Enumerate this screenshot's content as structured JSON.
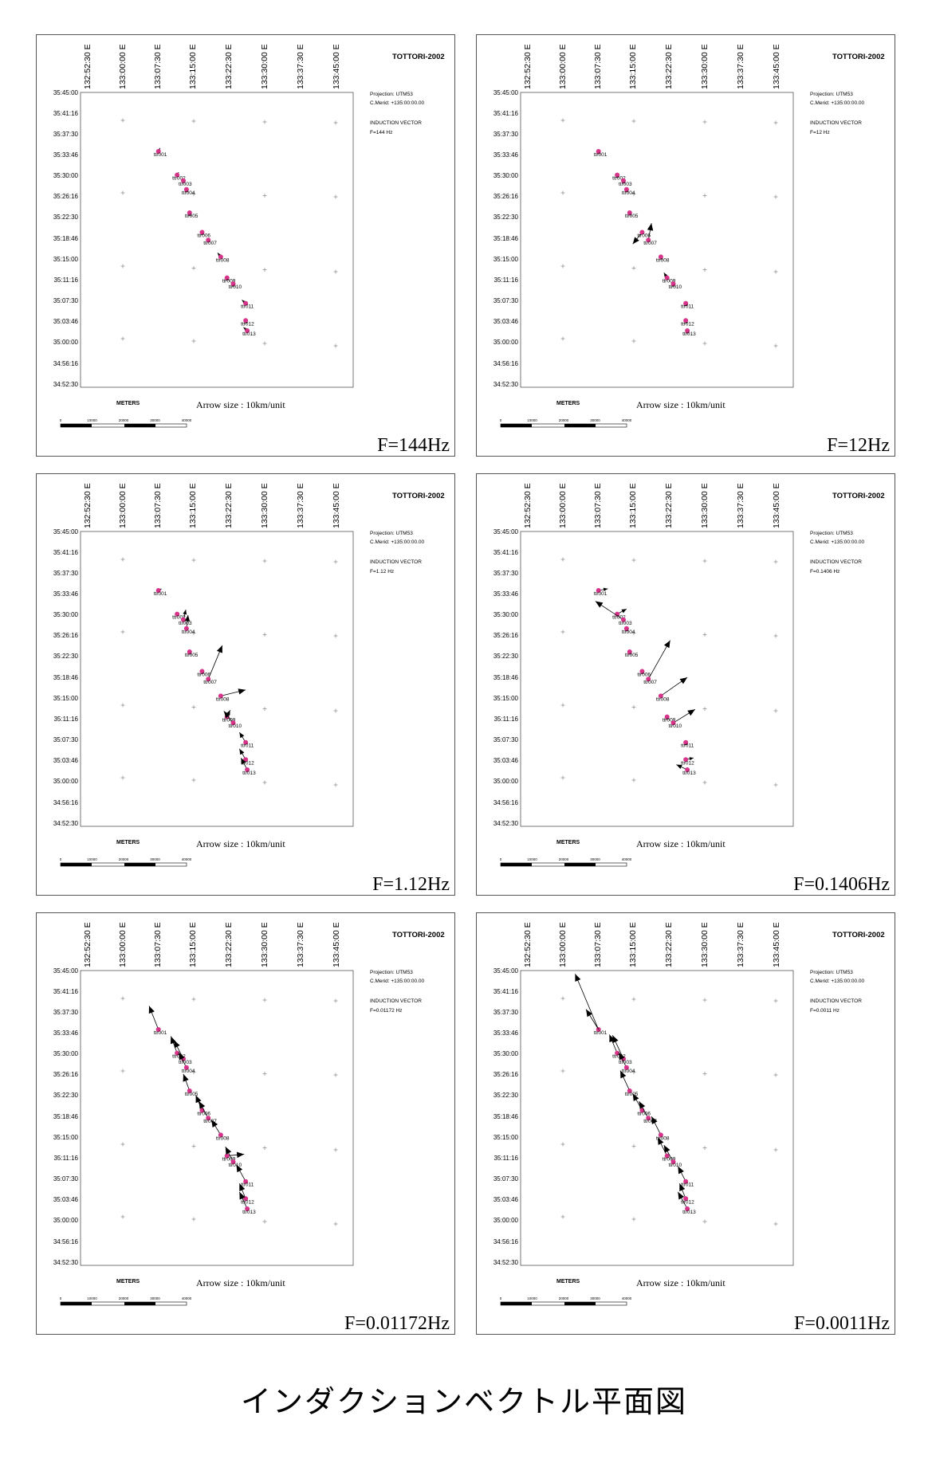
{
  "map_common": {
    "survey_title": "TOTTORI-2002",
    "projection": "Projection: UTM53",
    "central_meridian": "C.Merid: +135:00:00.00",
    "vector_type": "INDUCTION VECTOR",
    "arrow_size_note": "Arrow size : 10km/unit",
    "scale_unit": "METERS",
    "scale_ticks": [
      "0",
      "10000",
      "20000",
      "30000",
      "40000"
    ],
    "longitude_labels": [
      "132:52:30 E",
      "133:00:00 E",
      "133:07:30 E",
      "133:15:00 E",
      "133:22:30 E",
      "133:30:00 E",
      "133:37:30 E",
      "133:45:00 E"
    ],
    "latitude_labels": [
      "35:45:00",
      "35:41:16",
      "35:37:30",
      "35:33:46",
      "35:30:00",
      "35:26:16",
      "35:22:30",
      "35:18:46",
      "35:15:00",
      "35:11:16",
      "35:07:30",
      "35:03:46",
      "35:00:00",
      "34:56:16",
      "34:52:30"
    ]
  },
  "stations": [
    {
      "label": "ttr001",
      "lon": 133.125,
      "lat": 35.575
    },
    {
      "label": "ttr002",
      "lon": 133.185,
      "lat": 35.505
    },
    {
      "label": "ttr003",
      "lon": 133.205,
      "lat": 35.488
    },
    {
      "label": "ttr004",
      "lon": 133.215,
      "lat": 35.462
    },
    {
      "label": "ttr005",
      "lon": 133.225,
      "lat": 35.393
    },
    {
      "label": "ttr006",
      "lon": 133.265,
      "lat": 35.335
    },
    {
      "label": "ttr007",
      "lon": 133.285,
      "lat": 35.312
    },
    {
      "label": "ttr008",
      "lon": 133.325,
      "lat": 35.262
    },
    {
      "label": "ttr009",
      "lon": 133.345,
      "lat": 35.2
    },
    {
      "label": "ttr010",
      "lon": 133.365,
      "lat": 35.182
    },
    {
      "label": "ttr011",
      "lon": 133.405,
      "lat": 35.124
    },
    {
      "label": "ttr012",
      "lon": 133.405,
      "lat": 35.073
    },
    {
      "label": "ttr013",
      "lon": 133.41,
      "lat": 35.043
    }
  ],
  "panels": [
    {
      "frequency_label": "F=144Hz",
      "legend_freq": "F=144 Hz",
      "vectors": [
        [
          0.005,
          0.01
        ],
        [
          0.005,
          0.008
        ],
        [
          0,
          0.005
        ],
        [
          0,
          0.004
        ],
        [
          0,
          0.003
        ],
        [
          0,
          0.004
        ],
        [
          0,
          0.005
        ],
        [
          -0.01,
          0.012
        ],
        [
          0,
          0.004
        ],
        [
          0,
          0.004
        ],
        [
          -0.012,
          0.01
        ],
        [
          0,
          0.004
        ],
        [
          -0.012,
          0.01
        ]
      ]
    },
    {
      "frequency_label": "F=12Hz",
      "legend_freq": "F=12 Hz",
      "vectors": [
        [
          0,
          0.004
        ],
        [
          0,
          0.004
        ],
        [
          0,
          0.004
        ],
        [
          0,
          0.004
        ],
        [
          0,
          0.004
        ],
        [
          -0.03,
          -0.035
        ],
        [
          0.01,
          0.05
        ],
        [
          0,
          0.004
        ],
        [
          -0.01,
          0.015
        ],
        [
          0,
          0.004
        ],
        [
          0,
          0.004
        ],
        [
          0,
          0.004
        ],
        [
          0,
          0.004
        ]
      ]
    },
    {
      "frequency_label": "F=1.12Hz",
      "legend_freq": "F=1.12 Hz",
      "vectors": [
        [
          0.01,
          0.005
        ],
        [
          0,
          0.006
        ],
        [
          0.008,
          0.03
        ],
        [
          0.005,
          0.04
        ],
        [
          0,
          0.004
        ],
        [
          0,
          0.004
        ],
        [
          0.045,
          0.1
        ],
        [
          0.08,
          0.018
        ],
        [
          0.01,
          0.02
        ],
        [
          -0.03,
          0.035
        ],
        [
          -0.02,
          0.03
        ],
        [
          -0.02,
          0.032
        ],
        [
          -0.02,
          0.035
        ]
      ]
    },
    {
      "frequency_label": "F=0.1406Hz",
      "legend_freq": "F=0.1406 Hz",
      "vectors": [
        [
          0.03,
          0.005
        ],
        [
          0.03,
          0.015
        ],
        [
          -0.09,
          0.055
        ],
        [
          0,
          0.004
        ],
        [
          0,
          0.004
        ],
        [
          0,
          0.004
        ],
        [
          0.07,
          0.115
        ],
        [
          0.085,
          0.055
        ],
        [
          0,
          0.004
        ],
        [
          0.07,
          0.04
        ],
        [
          0,
          0.004
        ],
        [
          0.025,
          0.005
        ],
        [
          -0.035,
          0.015
        ]
      ]
    },
    {
      "frequency_label": "F=0.01172Hz",
      "legend_freq": "F=0.01172 Hz",
      "vectors": [
        [
          -0.03,
          0.07
        ],
        [
          -0.02,
          0.05
        ],
        [
          -0.03,
          0.055
        ],
        [
          -0.025,
          0.045
        ],
        [
          -0.02,
          0.05
        ],
        [
          -0.02,
          0.045
        ],
        [
          -0.03,
          0.05
        ],
        [
          -0.03,
          0.045
        ],
        [
          0.055,
          0.005
        ],
        [
          -0.025,
          0.045
        ],
        [
          -0.03,
          0.05
        ],
        [
          -0.02,
          0.045
        ],
        [
          -0.025,
          0.05
        ]
      ]
    },
    {
      "frequency_label": "F=0.0011Hz",
      "legend_freq": "F=0.0011 Hz",
      "vectors": [
        [
          -0.04,
          0.06
        ],
        [
          -0.025,
          0.055
        ],
        [
          -0.035,
          0.07
        ],
        [
          -0.025,
          0.045
        ],
        [
          -0.03,
          0.06
        ],
        [
          -0.03,
          0.05
        ],
        [
          -0.03,
          0.05
        ],
        [
          -0.03,
          0.055
        ],
        [
          -0.03,
          0.055
        ],
        [
          -0.03,
          0.05
        ],
        [
          -0.025,
          0.045
        ],
        [
          -0.02,
          0.045
        ],
        [
          -0.03,
          0.05
        ]
      ],
      "extra_vector": {
        "from_station": 0,
        "dlon": -0.075,
        "dlat": 0.165
      }
    }
  ],
  "figure_caption": "インダクションベクトル平面図",
  "colors": {
    "station_marker": "#d8338a",
    "arrow": "#000000",
    "frame": "#555555"
  }
}
